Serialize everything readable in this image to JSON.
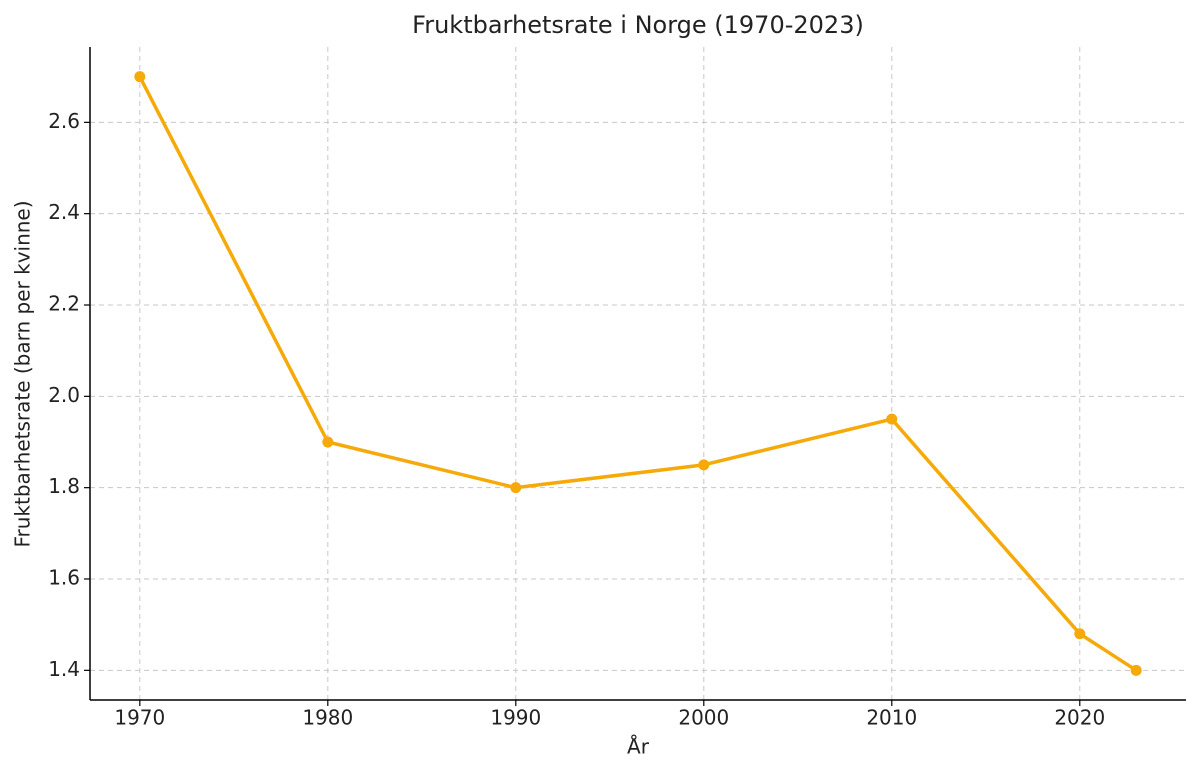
{
  "chart_data": {
    "type": "line",
    "title": "Fruktbarhetsrate i Norge (1970-2023)",
    "x_label": "År",
    "y_label": "Fruktbarhetsrate (barn per kvinne)",
    "x": [
      1970,
      1980,
      1990,
      2000,
      2010,
      2020,
      2023
    ],
    "series": [
      {
        "name": "Fruktbarhetsrate",
        "color": "#f5aa0a",
        "values": [
          2.7,
          1.9,
          1.8,
          1.85,
          1.95,
          1.48,
          1.4
        ]
      }
    ],
    "xlim": [
      1967.35,
      2025.65
    ],
    "xticks": [
      1970,
      1980,
      1990,
      2000,
      2010,
      2020
    ],
    "ylim": [
      1.335,
      2.765
    ],
    "yticks": [
      1.4,
      1.6,
      1.8,
      {
        "value": 2,
        "label": "2.0"
      },
      2.2,
      2.4,
      2.6
    ],
    "grid": true
  }
}
